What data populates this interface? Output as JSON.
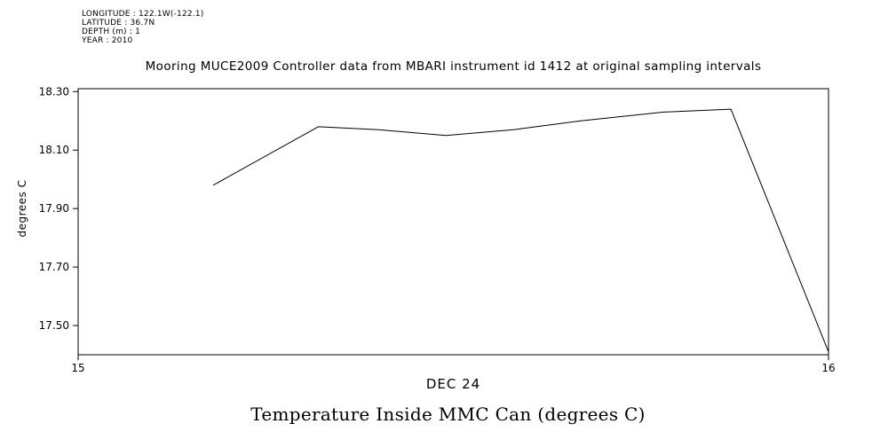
{
  "page": {
    "background": "#ffffff",
    "text_color": "#000000"
  },
  "metadata": {
    "lines": [
      "LONGITUDE : 122.1W(-122.1)",
      "LATITUDE : 36.7N",
      "DEPTH (m) : 1",
      "YEAR : 2010"
    ]
  },
  "chart_data": {
    "type": "line",
    "title": "Mooring MUCE2009 Controller data from MBARI instrument id 1412 at original sampling intervals",
    "bottom_title": "Temperature Inside MMC Can (degrees C)",
    "xlabel": "DEC 24",
    "ylabel": "degrees C",
    "xlim": [
      15,
      16
    ],
    "ylim": [
      17.4,
      18.31
    ],
    "x_ticks": [
      {
        "value": 15,
        "label": "15"
      },
      {
        "value": 16,
        "label": "16"
      }
    ],
    "y_ticks": [
      {
        "value": 18.3,
        "label": "18.30"
      },
      {
        "value": 18.1,
        "label": "18.10"
      },
      {
        "value": 17.9,
        "label": "17.90"
      },
      {
        "value": 17.7,
        "label": "17.70"
      },
      {
        "value": 17.5,
        "label": "17.50"
      }
    ],
    "grid": false,
    "legend": "none",
    "line_color": "#000000",
    "series": [
      {
        "name": "Temperature Inside MMC Can",
        "x": [
          15.18,
          15.32,
          15.4,
          15.49,
          15.58,
          15.67,
          15.78,
          15.87,
          16.0
        ],
        "y": [
          17.98,
          18.18,
          18.17,
          18.15,
          18.17,
          18.2,
          18.23,
          18.24,
          17.41
        ]
      }
    ]
  }
}
